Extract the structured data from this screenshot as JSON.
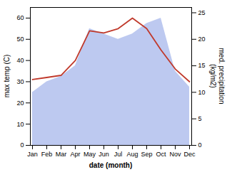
{
  "chart_data": {
    "type": "line",
    "categories": [
      "Jan",
      "Feb",
      "Mar",
      "Apr",
      "May",
      "Jun",
      "Jul",
      "Aug",
      "Sep",
      "Oct",
      "Nov",
      "Dec"
    ],
    "xlabel": "date (month)",
    "ylabel": "max temp (C)",
    "y2label": "med. precipitation\n(kg/m2)",
    "series": [
      {
        "type": "area",
        "color": "#bdc9f0",
        "axis": "y2",
        "values": [
          10,
          12,
          13,
          15,
          22,
          21,
          20,
          21,
          23,
          24,
          14,
          11
        ]
      },
      {
        "type": "line",
        "color": "#c0392b",
        "values": [
          31,
          32,
          33,
          40,
          54,
          53,
          55,
          60,
          55,
          45,
          36,
          30
        ]
      }
    ],
    "ylim": [
      0,
      65
    ],
    "yticks": [
      0,
      10,
      20,
      30,
      40,
      50,
      60
    ],
    "y2lim": [
      0,
      26
    ],
    "y2ticks": [
      0,
      5,
      10,
      15,
      20,
      25
    ],
    "grid": false
  }
}
